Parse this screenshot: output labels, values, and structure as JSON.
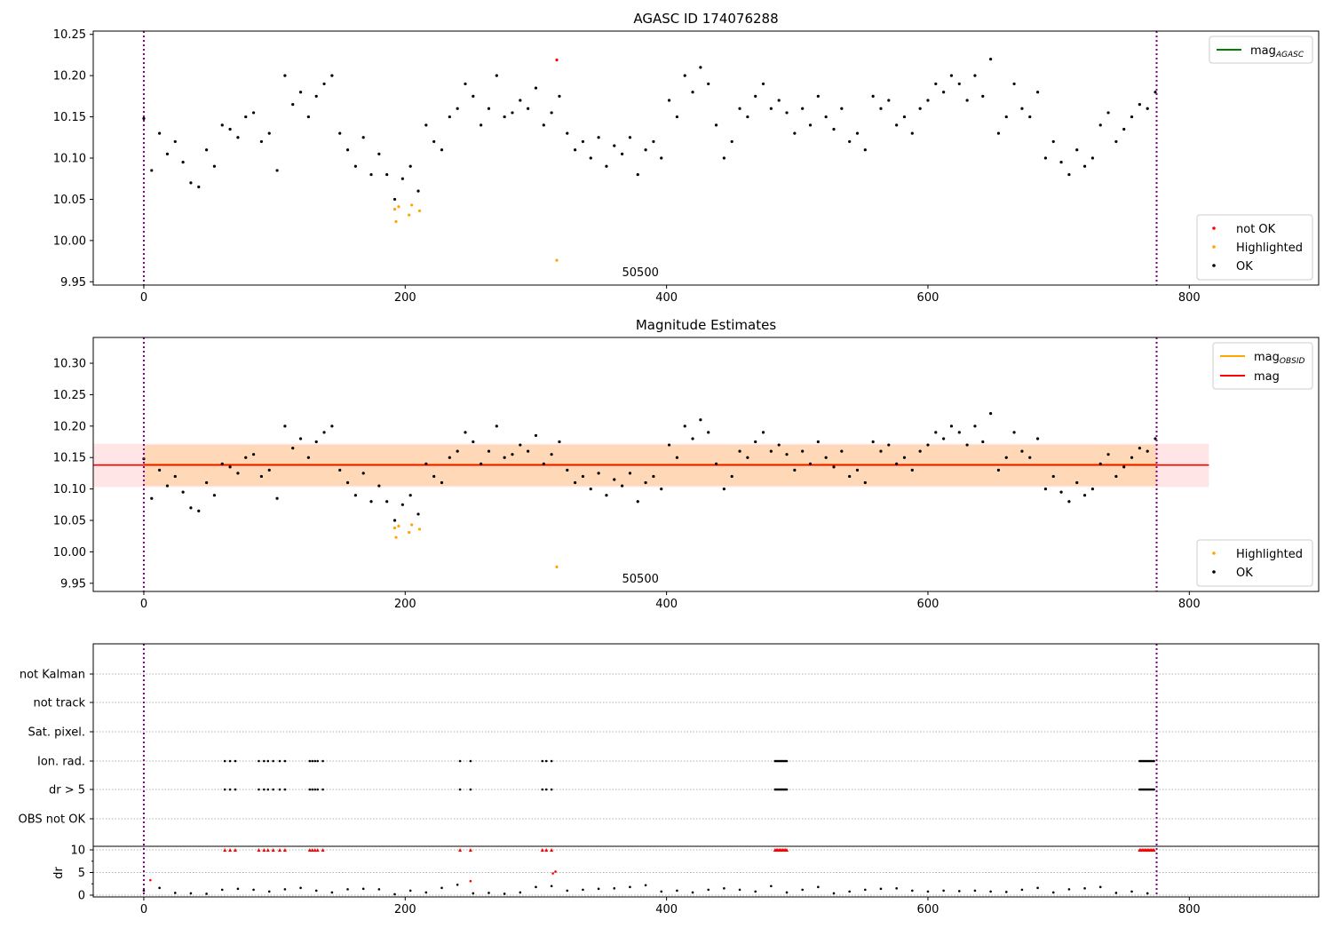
{
  "chart_data": [
    {
      "type": "scatter",
      "title": "AGASC ID 174076288",
      "xlim": [
        -38.7,
        899
      ],
      "ylim": [
        9.946,
        10.254
      ],
      "xticks": [
        "0",
        "200",
        "400",
        "600",
        "800"
      ],
      "yticks": [
        "9.95",
        "10.00",
        "10.05",
        "10.10",
        "10.15",
        "10.20",
        "10.25"
      ],
      "annotation": "50500",
      "legend_lines": [
        {
          "label": "mag",
          "sub": "AGASC",
          "color": "#008000"
        }
      ],
      "legend_points": [
        {
          "label": "not OK",
          "color": "#ff0000"
        },
        {
          "label": "Highlighted",
          "color": "#ffa500"
        },
        {
          "label": "OK",
          "color": "#000000"
        }
      ],
      "vlines": [
        0,
        775
      ],
      "ok": {
        "x_start": 0,
        "x_step": 6,
        "values": [
          10.148,
          10.085,
          10.13,
          10.105,
          10.12,
          10.095,
          10.07,
          10.065,
          10.11,
          10.09,
          10.14,
          10.135,
          10.125,
          10.15,
          10.155,
          10.12,
          10.13,
          10.085,
          10.2,
          10.165,
          10.18,
          10.15,
          10.175,
          10.19,
          10.2,
          10.13,
          10.11,
          10.09,
          10.125,
          10.08,
          10.105,
          10.08,
          10.05,
          10.075,
          10.09,
          10.06,
          10.14,
          10.12,
          10.11,
          10.15,
          10.16,
          10.19,
          10.175,
          10.14,
          10.16,
          10.2,
          10.15,
          10.155,
          10.17,
          10.16,
          10.185,
          10.14,
          10.155,
          10.175,
          10.13,
          10.11,
          10.12,
          10.1,
          10.125,
          10.09,
          10.115,
          10.105,
          10.125,
          10.08,
          10.11,
          10.12,
          10.1,
          10.17,
          10.15,
          10.2,
          10.18,
          10.21,
          10.19,
          10.14,
          10.1,
          10.12,
          10.16,
          10.15,
          10.175,
          10.19,
          10.16,
          10.17,
          10.155,
          10.13,
          10.16,
          10.14,
          10.175,
          10.15,
          10.135,
          10.16,
          10.12,
          10.13,
          10.11,
          10.175,
          10.16,
          10.17,
          10.14,
          10.15,
          10.13,
          10.16,
          10.17,
          10.19,
          10.18,
          10.2,
          10.19,
          10.17,
          10.2,
          10.175,
          10.22,
          10.13,
          10.15,
          10.19,
          10.16,
          10.15,
          10.18,
          10.1,
          10.12,
          10.095,
          10.08,
          10.11,
          10.09,
          10.1,
          10.14,
          10.155,
          10.12,
          10.135,
          10.15,
          10.165,
          10.16,
          10.18
        ]
      },
      "highlighted": [
        [
          192,
          10.038
        ],
        [
          193,
          10.023
        ],
        [
          195,
          10.041
        ],
        [
          203,
          10.031
        ],
        [
          205,
          10.043
        ],
        [
          211,
          10.036
        ],
        [
          316,
          9.976
        ]
      ],
      "not_ok": [
        [
          316,
          10.219
        ]
      ]
    },
    {
      "type": "scatter",
      "title": "Magnitude Estimates",
      "xlim": [
        -38.7,
        899
      ],
      "ylim": [
        9.937,
        10.341
      ],
      "xticks": [
        "0",
        "200",
        "400",
        "600",
        "800"
      ],
      "yticks": [
        "9.95",
        "10.00",
        "10.05",
        "10.10",
        "10.15",
        "10.20",
        "10.25",
        "10.30"
      ],
      "annotation": "50500",
      "legend_lines": [
        {
          "label": "mag",
          "sub": "OBSID",
          "color": "#ffa500"
        },
        {
          "label": "mag",
          "sub": "",
          "color": "#ff0000"
        }
      ],
      "legend_points": [
        {
          "label": "Highlighted",
          "color": "#ffa500"
        },
        {
          "label": "OK",
          "color": "#000000"
        }
      ],
      "mag": 10.138,
      "mag_band": [
        10.103,
        10.172
      ],
      "mag_range": [
        -38.7,
        815
      ],
      "mag_obsid": 10.139,
      "mag_obsid_band": [
        10.105,
        10.17
      ],
      "mag_obsid_range": [
        0,
        775
      ],
      "vlines": [
        0,
        775
      ]
    },
    {
      "type": "scatter",
      "title": "",
      "ylabel": "dr",
      "categories": [
        "not Kalman",
        "not track",
        "Sat. pixel.",
        "Ion. rad.",
        "dr > 5",
        "OBS not OK"
      ],
      "flag_x": [
        62,
        66,
        70,
        88,
        92,
        95,
        99,
        104,
        108,
        127,
        129,
        131,
        133,
        137,
        242,
        250,
        305,
        308,
        312,
        483,
        484,
        485,
        486,
        487,
        488,
        489,
        490,
        491,
        492,
        762,
        763,
        764,
        765,
        766,
        767,
        768,
        769,
        770,
        771,
        772,
        773
      ],
      "flagged_categories": [
        "Ion. rad.",
        "dr > 5"
      ],
      "dr_yticks": [
        "0",
        "5",
        "10"
      ],
      "xticks": [
        "0",
        "200",
        "400",
        "600",
        "800"
      ],
      "dr": {
        "x_start": 0,
        "x_step": 12,
        "values": [
          1.0,
          1.6,
          0.5,
          0.4,
          0.3,
          1.2,
          1.4,
          1.2,
          0.8,
          1.3,
          1.6,
          1.0,
          0.6,
          1.3,
          1.4,
          1.3,
          0.2,
          1.0,
          0.6,
          1.6,
          2.3,
          0.4,
          0.5,
          0.3,
          0.6,
          1.8,
          2.0,
          1.0,
          1.2,
          1.4,
          1.5,
          1.8,
          2.2,
          0.8,
          1.0,
          0.6,
          1.2,
          1.5,
          1.2,
          0.8,
          2.0,
          0.6,
          1.2,
          1.8,
          0.4,
          0.8,
          1.2,
          1.4,
          1.5,
          1.0,
          0.8,
          1.0,
          0.9,
          1.0,
          0.8,
          0.7,
          1.2,
          1.6,
          0.6,
          1.3,
          1.5,
          1.8,
          0.5,
          0.8,
          0.4
        ]
      },
      "dr_red": [
        [
          5,
          3.3
        ],
        [
          250,
          3.1
        ],
        [
          313,
          4.8
        ],
        [
          315,
          5.2
        ]
      ]
    }
  ]
}
